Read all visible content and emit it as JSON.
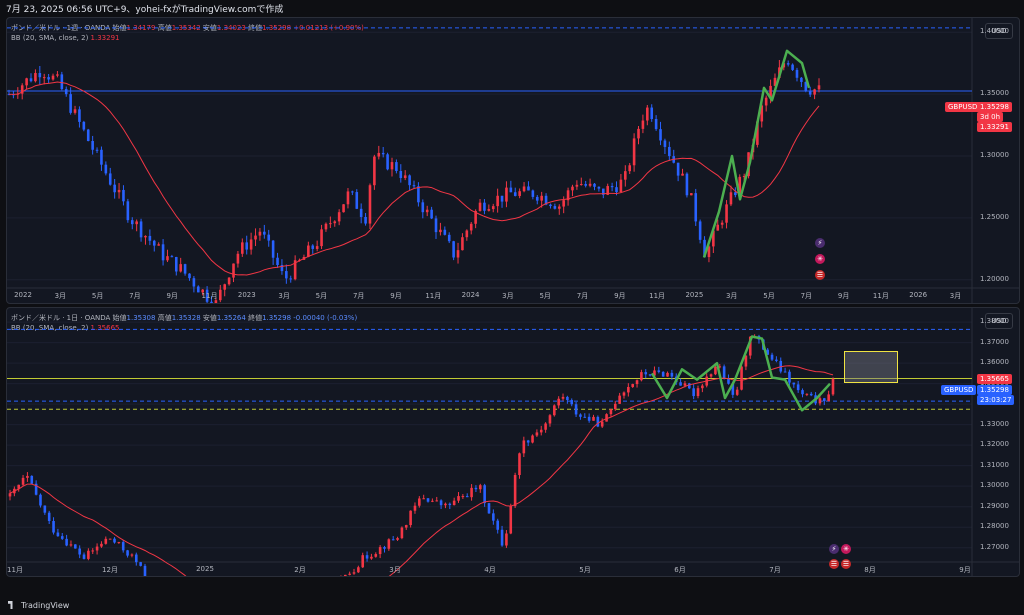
{
  "header": {
    "text": "7月 23, 2025 06:56 UTC+9、yohei-fxがTradingView.comで作成"
  },
  "top_panel": {
    "legend_line1": {
      "symbol": "ポンド／米ドル · 1週 · OANDA",
      "open_label": "始値",
      "open": "1.34179",
      "high_label": "高値",
      "high": "1.35342",
      "low_label": "安値",
      "low": "1.34023",
      "close_label": "終値",
      "close": "1.35298",
      "change": "+0.01213 (+0.90%)"
    },
    "legend_line2": {
      "indicator": "BB (20, SMA, close, 2)",
      "value": "1.33291"
    },
    "currency": "USD",
    "y_ticks": [
      "1.40000",
      "1.35000",
      "1.30000",
      "1.25000",
      "1.20000"
    ],
    "x_ticks": [
      "2022",
      "3月",
      "5月",
      "7月",
      "9月",
      "11月",
      "2023",
      "3月",
      "5月",
      "7月",
      "9月",
      "11月",
      "2024",
      "3月",
      "5月",
      "7月",
      "9月",
      "11月",
      "2025",
      "3月",
      "5月",
      "7月",
      "9月",
      "11月",
      "2026",
      "3月"
    ],
    "price_tag": {
      "symbol": "GBPUSD",
      "price": "1.35298",
      "countdown": "3d 0h",
      "bb": "1.33291"
    }
  },
  "bottom_panel": {
    "legend_line1": {
      "symbol": "ポンド／米ドル · 1日 · OANDA",
      "open_label": "始値",
      "open": "1.35308",
      "high_label": "高値",
      "high": "1.35328",
      "low_label": "安値",
      "low": "1.35264",
      "close_label": "終値",
      "close": "1.35298",
      "change": "-0.00040 (-0.03%)"
    },
    "legend_line2": {
      "indicator": "BB (20, SMA, close, 2)",
      "value": "1.35665"
    },
    "currency": "USD",
    "y_ticks": [
      "1.38000",
      "1.37000",
      "1.36000",
      "1.35000",
      "1.34000",
      "1.33000",
      "1.32000",
      "1.31000",
      "1.30000",
      "1.29000",
      "1.28000",
      "1.27000"
    ],
    "x_ticks": [
      "11月",
      "12月",
      "2025",
      "2月",
      "3月",
      "4月",
      "5月",
      "6月",
      "7月",
      "8月",
      "9月"
    ],
    "price_tag": {
      "symbol": "GBPUSD",
      "price": "1.35298",
      "countdown": "23:03:27",
      "bb": "1.35665"
    }
  },
  "footer": {
    "brand": "TradingView"
  },
  "chart_data": [
    {
      "type": "candlestick",
      "title": "ポンド／米ドル · 1週 · OANDA",
      "ylim": [
        1.195,
        1.405
      ],
      "x_range": [
        "2022-01",
        "2026-04"
      ],
      "levels": [
        {
          "y": 1.4035,
          "style": "dashed"
        },
        {
          "y": 1.3525,
          "style": "solid"
        }
      ],
      "last_close": 1.35298,
      "bb_value": 1.33291
    },
    {
      "type": "candlestick",
      "title": "ポンド／米ドル · 1日 · OANDA",
      "ylim": [
        1.264,
        1.383
      ],
      "x_range": [
        "2024-11",
        "2025-09"
      ],
      "levels": [
        {
          "y": 1.3765,
          "style": "dashed"
        },
        {
          "y": 1.3525,
          "style": "solid-yellow"
        },
        {
          "y": 1.3415,
          "style": "dashed"
        },
        {
          "y": 1.3375,
          "style": "dashed-yellow"
        }
      ],
      "last_close": 1.35298,
      "bb_value": 1.35665
    }
  ],
  "colors": {
    "up": "#f23645",
    "down": "#2962ff",
    "bb": "#f23645",
    "green_path": "#4caf50",
    "bg": "#131722"
  }
}
